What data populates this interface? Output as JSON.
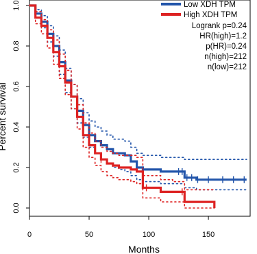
{
  "chart_data": {
    "type": "line",
    "xlabel": "Months",
    "ylabel": "Percent survival",
    "xlim": [
      0,
      185
    ],
    "ylim": [
      0,
      1.0
    ],
    "x_ticks": [
      0,
      50,
      100,
      150
    ],
    "y_ticks": [
      0.0,
      0.2,
      0.4,
      0.6,
      0.8,
      1.0
    ],
    "y_tick_labels": [
      "0.0",
      "0.2",
      "0.4",
      "0.6",
      "0.8",
      "1.0"
    ],
    "legend": {
      "position": "top-right",
      "entries": [
        {
          "label": "Low XDH TPM",
          "color": "#2255aa"
        },
        {
          "label": "High XDH TPM",
          "color": "#dd2222"
        }
      ]
    },
    "stats": [
      "Logrank p=0.24",
      "HR(high)=1.2",
      "p(HR)=0.24",
      "n(high)=212",
      "n(low)=212"
    ],
    "series": [
      {
        "name": "Low XDH TPM",
        "color": "#2255aa",
        "x": [
          0,
          5,
          10,
          15,
          20,
          25,
          30,
          35,
          40,
          45,
          50,
          55,
          60,
          65,
          70,
          75,
          80,
          85,
          90,
          95,
          100,
          110,
          120,
          130,
          140,
          150,
          160,
          170,
          182
        ],
        "y": [
          1.0,
          0.96,
          0.92,
          0.86,
          0.8,
          0.72,
          0.63,
          0.55,
          0.48,
          0.41,
          0.36,
          0.33,
          0.31,
          0.29,
          0.27,
          0.27,
          0.26,
          0.23,
          0.2,
          0.19,
          0.19,
          0.18,
          0.18,
          0.15,
          0.14,
          0.14,
          0.14,
          0.14,
          0.14
        ],
        "upper": [
          1.0,
          0.98,
          0.95,
          0.9,
          0.85,
          0.78,
          0.69,
          0.61,
          0.54,
          0.47,
          0.43,
          0.4,
          0.38,
          0.36,
          0.34,
          0.34,
          0.33,
          0.3,
          0.27,
          0.26,
          0.26,
          0.25,
          0.25,
          0.24,
          0.24,
          0.24,
          0.24,
          0.24,
          0.24
        ],
        "lower": [
          1.0,
          0.94,
          0.89,
          0.82,
          0.75,
          0.66,
          0.57,
          0.49,
          0.42,
          0.35,
          0.3,
          0.27,
          0.24,
          0.22,
          0.2,
          0.19,
          0.18,
          0.16,
          0.14,
          0.13,
          0.13,
          0.12,
          0.12,
          0.1,
          0.09,
          0.09,
          0.09,
          0.09,
          0.09
        ],
        "censor_x": [
          125,
          128,
          132,
          136,
          141,
          150,
          162,
          171,
          180
        ]
      },
      {
        "name": "High XDH TPM",
        "color": "#dd2222",
        "x": [
          0,
          5,
          10,
          15,
          20,
          25,
          30,
          35,
          40,
          45,
          50,
          55,
          60,
          65,
          70,
          75,
          80,
          85,
          90,
          95,
          100,
          110,
          120,
          130,
          140,
          150,
          155
        ],
        "y": [
          1.0,
          0.94,
          0.9,
          0.84,
          0.77,
          0.7,
          0.62,
          0.55,
          0.45,
          0.36,
          0.31,
          0.27,
          0.24,
          0.22,
          0.21,
          0.2,
          0.2,
          0.19,
          0.18,
          0.1,
          0.1,
          0.08,
          0.08,
          0.03,
          0.03,
          0.03,
          0.0
        ],
        "upper": [
          1.0,
          0.97,
          0.93,
          0.88,
          0.83,
          0.76,
          0.68,
          0.61,
          0.51,
          0.42,
          0.37,
          0.33,
          0.3,
          0.28,
          0.27,
          0.26,
          0.26,
          0.26,
          0.25,
          0.16,
          0.16,
          0.14,
          0.13,
          0.09,
          0.09,
          0.09,
          0.09
        ],
        "lower": [
          1.0,
          0.91,
          0.86,
          0.79,
          0.71,
          0.64,
          0.56,
          0.49,
          0.39,
          0.3,
          0.25,
          0.21,
          0.18,
          0.16,
          0.15,
          0.14,
          0.14,
          0.13,
          0.12,
          0.05,
          0.05,
          0.03,
          0.03,
          0.0,
          0.0,
          0.0,
          0.0
        ],
        "censor_x": [
          60,
          98,
          128
        ]
      }
    ]
  }
}
